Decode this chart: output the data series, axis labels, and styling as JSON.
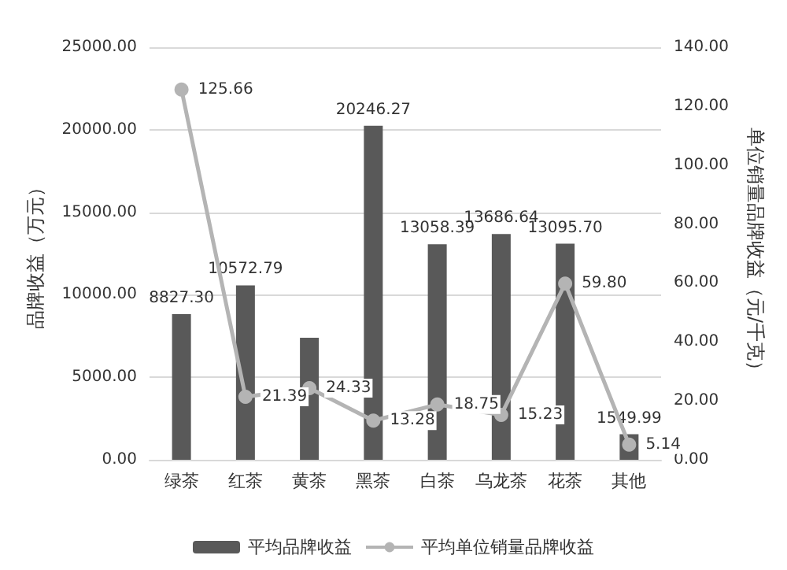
{
  "chart_data": {
    "type": "bar",
    "ylabel": "品牌收益（万元）",
    "y2label": "单位销量品牌收益（元/千克）",
    "categories": [
      "绿茶",
      "红茶",
      "黄茶",
      "黑茶",
      "白茶",
      "乌龙茶",
      "花茶",
      "其他"
    ],
    "series": [
      {
        "name": "平均品牌收益",
        "color": "#595959",
        "values": [
          8827.3,
          10572.79,
          7400,
          20246.27,
          13058.39,
          13686.64,
          13095.7,
          1549.99
        ],
        "value_labels": [
          "8827.30",
          "10572.79",
          null,
          "20246.27",
          "13058.39",
          "13686.64",
          "13095.70",
          "1549.99"
        ]
      },
      {
        "name": "平均单位销量品牌收益",
        "type": "line",
        "axis": "y2",
        "color": "#b4b4b4",
        "marker": "circle",
        "values": [
          125.66,
          21.39,
          24.33,
          13.28,
          18.75,
          15.23,
          59.8,
          5.14
        ],
        "value_labels": [
          "125.66",
          "21.39",
          "24.33",
          "13.28",
          "18.75",
          "15.23",
          "59.80",
          "5.14"
        ]
      }
    ],
    "ylim": [
      0,
      25000
    ],
    "yticks": [
      {
        "value": 0,
        "label": "0.00"
      },
      {
        "value": 5000,
        "label": "5000.00"
      },
      {
        "value": 10000,
        "label": "10000.00"
      },
      {
        "value": 15000,
        "label": "15000.00"
      },
      {
        "value": 20000,
        "label": "20000.00"
      },
      {
        "value": 25000,
        "label": "25000.00"
      }
    ],
    "y2lim": [
      0,
      140
    ],
    "y2ticks": [
      {
        "value": 0,
        "label": "0.00"
      },
      {
        "value": 20,
        "label": "20.00"
      },
      {
        "value": 40,
        "label": "40.00"
      },
      {
        "value": 60,
        "label": "60.00"
      },
      {
        "value": 80,
        "label": "80.00"
      },
      {
        "value": 100,
        "label": "100.00"
      },
      {
        "value": 120,
        "label": "120.00"
      },
      {
        "value": 140,
        "label": "140.00"
      }
    ],
    "grid": "y",
    "legend": "bottom"
  }
}
